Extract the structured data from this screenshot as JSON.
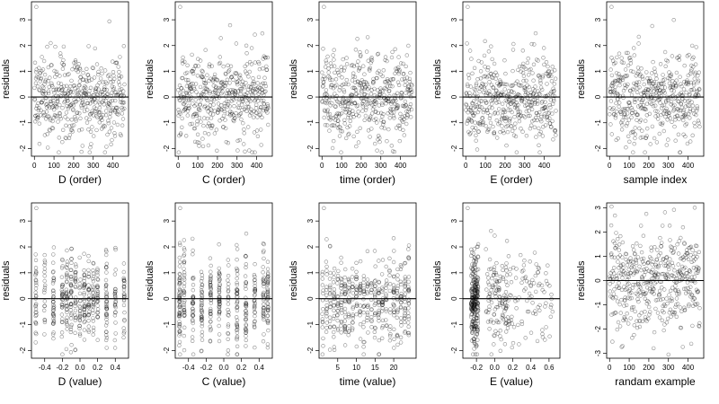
{
  "chart_data": [
    {
      "type": "scatter",
      "xlabel": "D (order)",
      "ylabel": "residuals",
      "xlim": [
        -15,
        480
      ],
      "ylim": [
        -2.3,
        3.7
      ],
      "xticks": [
        0,
        100,
        200,
        300,
        400
      ],
      "xtick_labels": [
        "0",
        "100",
        "200",
        "300",
        "400"
      ],
      "yticks": [
        -2,
        -1,
        0,
        1,
        2,
        3
      ],
      "ytick_labels": [
        "-2",
        "-1",
        "0",
        "1",
        "2",
        "3"
      ],
      "reference_line_y": 0,
      "x_mode": "order"
    },
    {
      "type": "scatter",
      "xlabel": "C (order)",
      "ylabel": "residuals",
      "xlim": [
        -15,
        480
      ],
      "ylim": [
        -2.3,
        3.7
      ],
      "xticks": [
        0,
        100,
        200,
        300,
        400
      ],
      "xtick_labels": [
        "0",
        "100",
        "200",
        "300",
        "400"
      ],
      "yticks": [
        -2,
        -1,
        0,
        1,
        2,
        3
      ],
      "ytick_labels": [
        "-2",
        "-1",
        "0",
        "1",
        "2",
        "3"
      ],
      "reference_line_y": 0,
      "x_mode": "order"
    },
    {
      "type": "scatter",
      "xlabel": "time (order)",
      "ylabel": "residuals",
      "xlim": [
        -15,
        480
      ],
      "ylim": [
        -2.3,
        3.7
      ],
      "xticks": [
        0,
        100,
        200,
        300,
        400
      ],
      "xtick_labels": [
        "0",
        "100",
        "200",
        "300",
        "400"
      ],
      "yticks": [
        -2,
        -1,
        0,
        1,
        2,
        3
      ],
      "ytick_labels": [
        "-2",
        "-1",
        "0",
        "1",
        "2",
        "3"
      ],
      "reference_line_y": 0,
      "x_mode": "order"
    },
    {
      "type": "scatter",
      "xlabel": "E (order)",
      "ylabel": "residuals",
      "xlim": [
        -15,
        480
      ],
      "ylim": [
        -2.3,
        3.7
      ],
      "xticks": [
        0,
        100,
        200,
        300,
        400
      ],
      "xtick_labels": [
        "0",
        "100",
        "200",
        "300",
        "400"
      ],
      "yticks": [
        -2,
        -1,
        0,
        1,
        2,
        3
      ],
      "ytick_labels": [
        "-2",
        "-1",
        "0",
        "1",
        "2",
        "3"
      ],
      "reference_line_y": 0,
      "x_mode": "order"
    },
    {
      "type": "scatter",
      "xlabel": "sample index",
      "ylabel": "residuals",
      "xlim": [
        -15,
        480
      ],
      "ylim": [
        -2.3,
        3.7
      ],
      "xticks": [
        0,
        100,
        200,
        300,
        400
      ],
      "xtick_labels": [
        "0",
        "100",
        "200",
        "300",
        "400"
      ],
      "yticks": [
        -2,
        -1,
        0,
        1,
        2,
        3
      ],
      "ytick_labels": [
        "-2",
        "-1",
        "0",
        "1",
        "2",
        "3"
      ],
      "reference_line_y": 0,
      "x_mode": "order"
    },
    {
      "type": "scatter",
      "xlabel": "D (value)",
      "ylabel": "residuals",
      "xlim": [
        -0.55,
        0.55
      ],
      "ylim": [
        -2.3,
        3.7
      ],
      "xticks": [
        -0.4,
        -0.2,
        0,
        0.2,
        0.4
      ],
      "xtick_labels": [
        "-0.4",
        "-0.2",
        "0.0",
        "0.2",
        "0.4"
      ],
      "yticks": [
        -2,
        -1,
        0,
        1,
        2,
        3
      ],
      "ytick_labels": [
        "-2",
        "-1",
        "0",
        "1",
        "2",
        "3"
      ],
      "reference_line_y": 0,
      "x_mode": "levels",
      "x_levels": [
        -0.5,
        -0.4,
        -0.3,
        -0.2,
        -0.15,
        -0.1,
        -0.05,
        0.0,
        0.05,
        0.1,
        0.15,
        0.2,
        0.3,
        0.4,
        0.5
      ]
    },
    {
      "type": "scatter",
      "xlabel": "C (value)",
      "ylabel": "residuals",
      "xlim": [
        -0.55,
        0.55
      ],
      "ylim": [
        -2.3,
        3.7
      ],
      "xticks": [
        -0.4,
        -0.2,
        0,
        0.2,
        0.4
      ],
      "xtick_labels": [
        "-0.4",
        "-0.2",
        "0.0",
        "0.2",
        "0.4"
      ],
      "yticks": [
        -2,
        -1,
        0,
        1,
        2,
        3
      ],
      "ytick_labels": [
        "-2",
        "-1",
        "0",
        "1",
        "2",
        "3"
      ],
      "reference_line_y": 0,
      "x_mode": "levels",
      "x_levels": [
        -0.5,
        -0.45,
        -0.35,
        -0.25,
        -0.15,
        -0.05,
        0.05,
        0.15,
        0.25,
        0.35,
        0.45,
        0.5
      ]
    },
    {
      "type": "scatter",
      "xlabel": "time (value)",
      "ylabel": "residuals",
      "xlim": [
        0,
        26
      ],
      "ylim": [
        -2.3,
        3.7
      ],
      "xticks": [
        5,
        10,
        15,
        20
      ],
      "xtick_labels": [
        "5",
        "10",
        "15",
        "20"
      ],
      "yticks": [
        -2,
        -1,
        0,
        1,
        2,
        3
      ],
      "ytick_labels": [
        "-2",
        "-1",
        "0",
        "1",
        "2",
        "3"
      ],
      "reference_line_y": 0,
      "x_mode": "levels",
      "x_levels": [
        1,
        2,
        3,
        4,
        5,
        6,
        7,
        8,
        9,
        10,
        11,
        12,
        13,
        14,
        15,
        16,
        17,
        18,
        19,
        20,
        21,
        22,
        23,
        24
      ]
    },
    {
      "type": "scatter",
      "xlabel": "E (value)",
      "ylabel": "residuals",
      "xlim": [
        -0.35,
        0.72
      ],
      "ylim": [
        -2.3,
        3.7
      ],
      "xticks": [
        -0.2,
        0,
        0.2,
        0.4,
        0.6
      ],
      "xtick_labels": [
        "-0.2",
        "0.0",
        "0.2",
        "0.4",
        "0.6"
      ],
      "yticks": [
        -2,
        -1,
        0,
        1,
        2,
        3
      ],
      "ytick_labels": [
        "-2",
        "-1",
        "0",
        "1",
        "2",
        "3"
      ],
      "reference_line_y": 0,
      "x_mode": "skewed"
    },
    {
      "type": "scatter",
      "xlabel": "randam example",
      "ylabel": "residuals",
      "xlim": [
        -15,
        480
      ],
      "ylim": [
        -3.2,
        3.2
      ],
      "xticks": [
        0,
        100,
        200,
        300,
        400
      ],
      "xtick_labels": [
        "0",
        "100",
        "200",
        "300",
        "400"
      ],
      "yticks": [
        -3,
        -2,
        -1,
        0,
        1,
        2,
        3
      ],
      "ytick_labels": [
        "-3",
        "-2",
        "-1",
        "0",
        "1",
        "2",
        "3"
      ],
      "reference_line_y": 0,
      "x_mode": "random"
    }
  ]
}
